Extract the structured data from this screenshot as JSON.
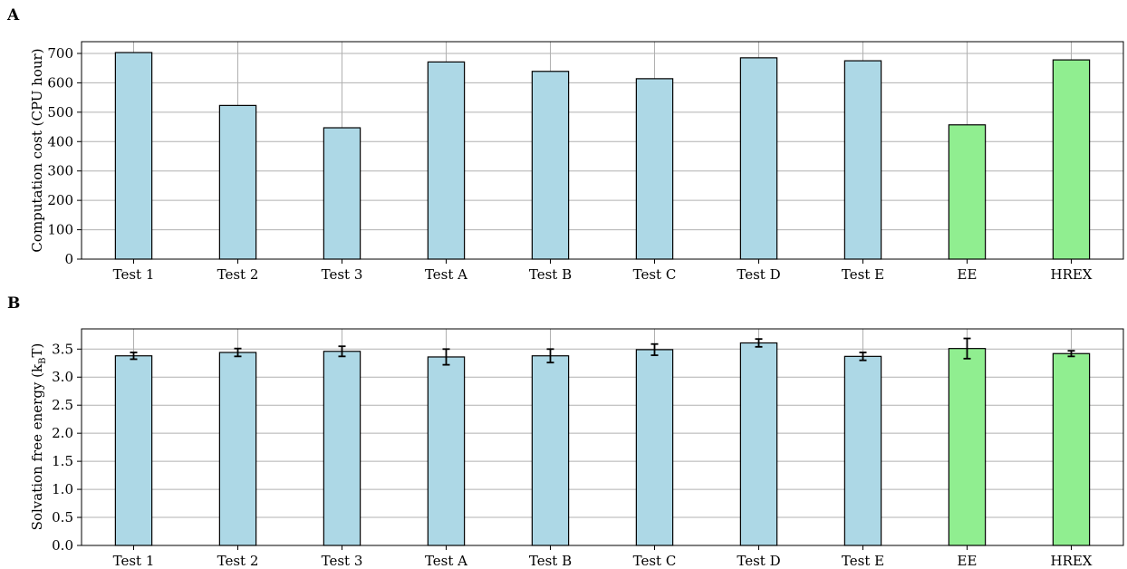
{
  "chart_data": [
    {
      "panel_label": "A",
      "type": "bar",
      "categories": [
        "Test 1",
        "Test 2",
        "Test 3",
        "Test A",
        "Test B",
        "Test C",
        "Test D",
        "Test E",
        "EE",
        "HREX"
      ],
      "values": [
        703,
        523,
        447,
        671,
        639,
        614,
        685,
        675,
        457,
        678
      ],
      "bar_colors": [
        "#add8e6",
        "#add8e6",
        "#add8e6",
        "#add8e6",
        "#add8e6",
        "#add8e6",
        "#add8e6",
        "#add8e6",
        "#90ee90",
        "#90ee90"
      ],
      "ylabel": "Computation cost (CPU hour)",
      "xlabel": "",
      "ylim": [
        0,
        740
      ],
      "yticks": [
        0,
        100,
        200,
        300,
        400,
        500,
        600,
        700
      ],
      "grid": true
    },
    {
      "panel_label": "B",
      "type": "bar",
      "categories": [
        "Test 1",
        "Test 2",
        "Test 3",
        "Test A",
        "Test B",
        "Test C",
        "Test D",
        "Test E",
        "EE",
        "HREX"
      ],
      "values": [
        3.38,
        3.44,
        3.46,
        3.36,
        3.38,
        3.49,
        3.61,
        3.37,
        3.51,
        3.42
      ],
      "errors": [
        0.06,
        0.07,
        0.09,
        0.14,
        0.12,
        0.1,
        0.07,
        0.07,
        0.18,
        0.05
      ],
      "bar_colors": [
        "#add8e6",
        "#add8e6",
        "#add8e6",
        "#add8e6",
        "#add8e6",
        "#add8e6",
        "#add8e6",
        "#add8e6",
        "#90ee90",
        "#90ee90"
      ],
      "ylabel_main": "Solvation free energy (k",
      "ylabel_sub": "B",
      "ylabel_end": "T)",
      "xlabel": "",
      "ylim": [
        0,
        3.86
      ],
      "yticks": [
        "0.0",
        "0.5",
        "1.0",
        "1.5",
        "2.0",
        "2.5",
        "3.0",
        "3.5"
      ],
      "grid": true
    }
  ]
}
